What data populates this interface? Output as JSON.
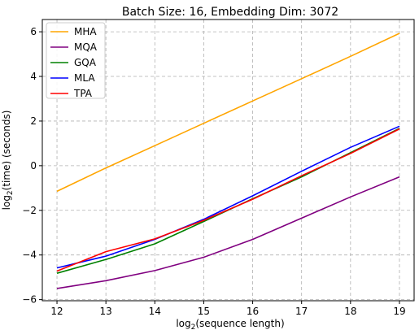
{
  "chart_data": {
    "type": "line",
    "title": "Batch Size: 16, Embedding Dim: 3072",
    "xlabel_pre": "log",
    "xlabel_sub": "2",
    "xlabel_post": "(sequence length)",
    "ylabel_pre": "log",
    "ylabel_sub": "2",
    "ylabel_post": "(time) (seconds)",
    "x": [
      12,
      13,
      14,
      15,
      16,
      17,
      18,
      19
    ],
    "xlim": [
      11.7,
      19.3
    ],
    "ylim": [
      -6.05,
      6.55
    ],
    "xticks": [
      "12",
      "13",
      "14",
      "15",
      "16",
      "17",
      "18",
      "19"
    ],
    "yticks": [
      "−6",
      "−4",
      "−2",
      "0",
      "2",
      "4",
      "6"
    ],
    "ytick_values": [
      -6,
      -4,
      -2,
      0,
      2,
      4,
      6
    ],
    "grid": true,
    "grid_style": "dashed",
    "legend_position": "upper-left",
    "series": [
      {
        "name": "MHA",
        "color": "#ffa500",
        "values": [
          -1.15,
          -0.1,
          0.9,
          1.9,
          2.9,
          3.9,
          4.9,
          5.93
        ]
      },
      {
        "name": "MQA",
        "color": "#800080",
        "values": [
          -5.5,
          -5.15,
          -4.7,
          -4.1,
          -3.3,
          -2.35,
          -1.4,
          -0.5
        ]
      },
      {
        "name": "GQA",
        "color": "#008000",
        "values": [
          -4.82,
          -4.2,
          -3.5,
          -2.5,
          -1.48,
          -0.5,
          0.58,
          1.67
        ]
      },
      {
        "name": "MLA",
        "color": "#0000ff",
        "values": [
          -4.58,
          -4.05,
          -3.3,
          -2.4,
          -1.35,
          -0.25,
          0.82,
          1.77
        ]
      },
      {
        "name": "TPA",
        "color": "#ff0000",
        "values": [
          -4.72,
          -3.85,
          -3.28,
          -2.45,
          -1.5,
          -0.45,
          0.55,
          1.65
        ]
      }
    ]
  }
}
